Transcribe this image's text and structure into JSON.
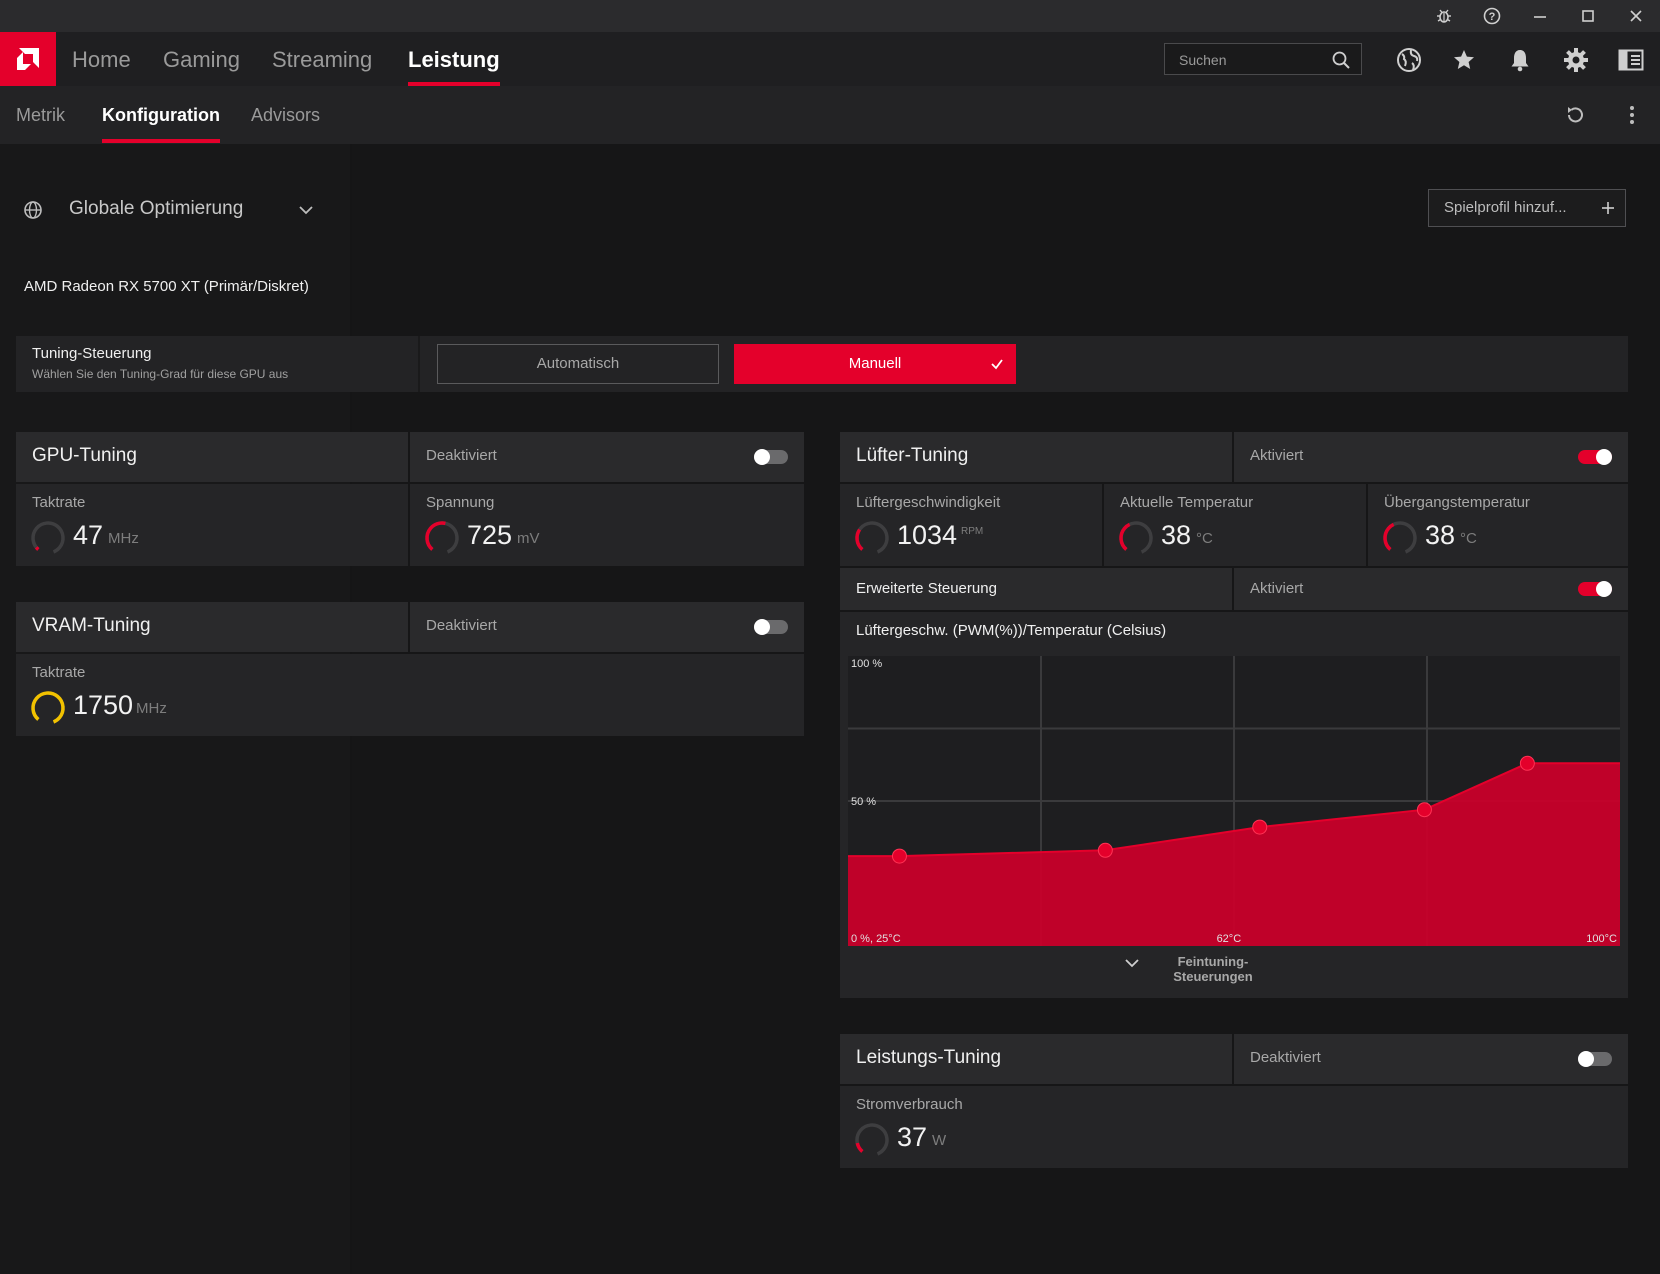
{
  "titlebar": {
    "icons": [
      "bug-icon",
      "help-icon",
      "minimize-icon",
      "maximize-icon",
      "close-icon"
    ]
  },
  "nav": {
    "tabs": [
      {
        "label": "Home",
        "active": false
      },
      {
        "label": "Gaming",
        "active": false
      },
      {
        "label": "Streaming",
        "active": false
      },
      {
        "label": "Leistung",
        "active": true
      }
    ],
    "search_placeholder": "Suchen",
    "icons": [
      "globe-icon",
      "star-icon",
      "bell-icon",
      "gear-icon",
      "sidebar-icon"
    ]
  },
  "subnav": {
    "tabs": [
      {
        "label": "Metrik",
        "active": false
      },
      {
        "label": "Konfiguration",
        "active": true
      },
      {
        "label": "Advisors",
        "active": false
      }
    ]
  },
  "profile": {
    "selected": "Globale Optimierung",
    "add_button": "Spielprofil hinzuf..."
  },
  "gpu_name": "AMD Radeon RX 5700 XT (Primär/Diskret)",
  "tuning_control": {
    "title": "Tuning-Steuerung",
    "subtitle": "Wählen Sie den Tuning-Grad für diese GPU aus",
    "auto_label": "Automatisch",
    "manual_label": "Manuell",
    "selected": "Manuell"
  },
  "gpu_tuning": {
    "title": "GPU-Tuning",
    "state": "Deaktiviert",
    "enabled": false,
    "clock_label": "Taktrate",
    "clock_value": "47",
    "clock_unit": "MHz",
    "voltage_label": "Spannung",
    "voltage_value": "725",
    "voltage_unit": "mV"
  },
  "vram_tuning": {
    "title": "VRAM-Tuning",
    "state": "Deaktiviert",
    "enabled": false,
    "clock_label": "Taktrate",
    "clock_value": "1750",
    "clock_unit": "MHz"
  },
  "fan_tuning": {
    "title": "Lüfter-Tuning",
    "state": "Aktiviert",
    "enabled": true,
    "speed_label": "Lüftergeschwindigkeit",
    "speed_value": "1034",
    "speed_unit": "RPM",
    "temp_label": "Aktuelle Temperatur",
    "temp_value": "38",
    "temp_unit": "°C",
    "junction_label": "Übergangstemperatur",
    "junction_value": "38",
    "junction_unit": "°C",
    "advanced_label": "Erweiterte Steuerung",
    "advanced_state": "Aktiviert",
    "advanced_enabled": true,
    "chart_title": "Lüftergeschw. (PWM(%))/Temperatur (Celsius)",
    "fine_tuning_label": "Feintuning-Steuerungen"
  },
  "power_tuning": {
    "title": "Leistungs-Tuning",
    "state": "Deaktiviert",
    "enabled": false,
    "power_label": "Stromverbrauch",
    "power_value": "37",
    "power_unit": "W"
  },
  "chart_data": {
    "type": "area",
    "title": "",
    "xlabel": "",
    "ylabel": "",
    "xlim": [
      25,
      100
    ],
    "ylim": [
      0,
      100
    ],
    "tick_labels": {
      "y_top": "100 %",
      "y_mid": "50 %",
      "origin": "0 %, 25°C",
      "x_mid": "62°C",
      "x_max": "100°C"
    },
    "x": [
      30,
      50,
      65,
      81,
      91
    ],
    "y": [
      31,
      33,
      41,
      47,
      63
    ],
    "grid": true
  },
  "colors": {
    "accent": "#e4002b",
    "vram_gauge": "#f2c200"
  }
}
